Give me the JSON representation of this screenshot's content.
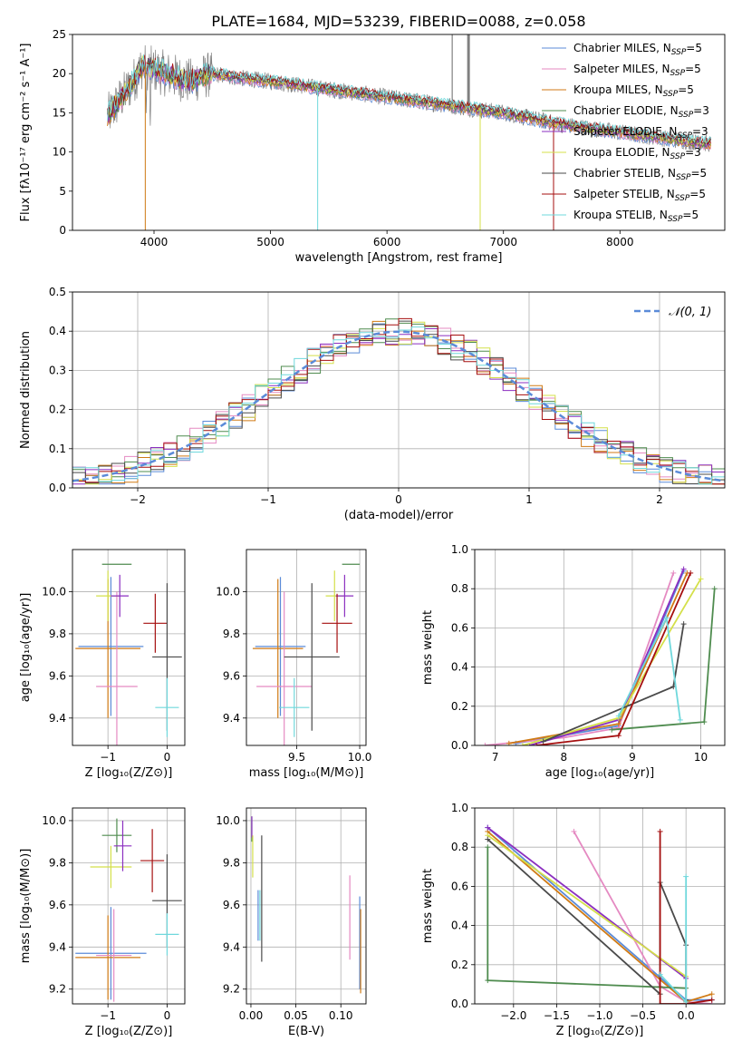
{
  "figure": {
    "title": "PLATE=1684, MJD=53239, FIBERID=0088, z=0.058"
  },
  "colors": {
    "chabrier_miles": "#5b8bd8",
    "salpeter_miles": "#e58ac2",
    "kroupa_miles": "#d07a14",
    "chabrier_elodie": "#4f8c4f",
    "salpeter_elodie": "#8b2fc0",
    "kroupa_elodie": "#d4e04a",
    "chabrier_stelib": "#4a4a4a",
    "salpeter_stelib": "#a50f0f",
    "kroupa_stelib": "#6fd8dc",
    "data": "#808080",
    "normal": "#5b8bd8"
  },
  "chart_data": [
    {
      "id": "spectrum",
      "type": "line",
      "xlabel": "wavelength [Angstrom, rest frame]",
      "ylabel": "Flux [fλ10⁻¹⁷ erg cm⁻² s⁻¹ A⁻¹]",
      "xlim": [
        3300,
        8900
      ],
      "ylim": [
        0,
        25
      ],
      "xticks": [
        4000,
        5000,
        6000,
        7000,
        8000
      ],
      "yticks": [
        0,
        5,
        10,
        15,
        20,
        25
      ],
      "grid": false,
      "legend_position": "top-right",
      "continuum": {
        "x": [
          3600,
          3700,
          3800,
          3900,
          4000,
          4100,
          4200,
          4300,
          4400,
          4500,
          4700,
          5000,
          5500,
          6000,
          6500,
          7000,
          7500,
          8000,
          8500,
          8800
        ],
        "y": [
          14.5,
          16.5,
          18.5,
          21,
          20.5,
          20,
          19.5,
          19,
          19.5,
          20,
          19.5,
          19,
          18,
          17,
          16,
          15,
          13.5,
          12.5,
          11.5,
          11
        ]
      },
      "series": [
        {
          "name": "Chabrier MILES, N_SSP=5",
          "color_key": "chabrier_miles"
        },
        {
          "name": "Salpeter MILES, N_SSP=5",
          "color_key": "salpeter_miles"
        },
        {
          "name": "Kroupa MILES, N_SSP=5",
          "color_key": "kroupa_miles"
        },
        {
          "name": "Chabrier ELODIE, N_SSP=3",
          "color_key": "chabrier_elodie"
        },
        {
          "name": "Salpeter ELODIE, N_SSP=3",
          "color_key": "salpeter_elodie"
        },
        {
          "name": "Kroupa ELODIE, N_SSP=3",
          "color_key": "kroupa_elodie"
        },
        {
          "name": "Chabrier STELIB, N_SSP=5",
          "color_key": "chabrier_stelib"
        },
        {
          "name": "Salpeter STELIB, N_SSP=5",
          "color_key": "salpeter_stelib"
        },
        {
          "name": "Kroupa STELIB, N_SSP=5",
          "color_key": "kroupa_stelib"
        }
      ],
      "legend_entries": [
        {
          "main": "Chabrier MILES, N",
          "sub": "SSP",
          "tail": "=5",
          "color_key": "chabrier_miles"
        },
        {
          "main": "Salpeter MILES, N",
          "sub": "SSP",
          "tail": "=5",
          "color_key": "salpeter_miles"
        },
        {
          "main": "Kroupa MILES, N",
          "sub": "SSP",
          "tail": "=5",
          "color_key": "kroupa_miles"
        },
        {
          "main": "Chabrier ELODIE, N",
          "sub": "SSP",
          "tail": "=3",
          "color_key": "chabrier_elodie"
        },
        {
          "main": "Salpeter ELODIE, N",
          "sub": "SSP",
          "tail": "=3",
          "color_key": "salpeter_elodie"
        },
        {
          "main": "Kroupa ELODIE, N",
          "sub": "SSP",
          "tail": "=3",
          "color_key": "kroupa_elodie"
        },
        {
          "main": "Chabrier STELIB, N",
          "sub": "SSP",
          "tail": "=5",
          "color_key": "chabrier_stelib"
        },
        {
          "main": "Salpeter STELIB, N",
          "sub": "SSP",
          "tail": "=5",
          "color_key": "salpeter_stelib"
        },
        {
          "main": "Kroupa STELIB, N",
          "sub": "SSP",
          "tail": "=5",
          "color_key": "kroupa_stelib"
        }
      ]
    },
    {
      "id": "residuals",
      "type": "line",
      "xlabel": "(data-model)/error",
      "ylabel": "Normed distribution",
      "xlim": [
        -2.5,
        2.5
      ],
      "ylim": [
        0,
        0.5
      ],
      "xticks": [
        -2,
        -1,
        0,
        1,
        2
      ],
      "xtick_labels": [
        "−2",
        "−1",
        "0",
        "1",
        "2"
      ],
      "yticks": [
        0.0,
        0.1,
        0.2,
        0.3,
        0.4,
        0.5
      ],
      "ytick_labels": [
        "0.0",
        "0.1",
        "0.2",
        "0.3",
        "0.4",
        "0.5"
      ],
      "grid": true,
      "legend_position": "top-right",
      "legend_label": "𝒩(0, 1)",
      "histogram_bins": 50,
      "histogram_jitter": 0.035,
      "series": [
        {
          "name": "𝒩(0, 1)",
          "mean": 0,
          "sigma": 1,
          "style": "dashed"
        }
      ]
    },
    {
      "id": "age_vs_Z",
      "type": "scatter",
      "xlabel": "Z [log₁₀(Z/Z⊙)]",
      "ylabel": "age  [log₁₀(age/yr)]",
      "xlim": [
        -1.6,
        0.3
      ],
      "ylim": [
        9.27,
        10.2
      ],
      "xticks": [
        -1,
        0
      ],
      "xtick_labels": [
        "−1",
        "0"
      ],
      "yticks": [
        9.4,
        9.6,
        9.8,
        10.0
      ],
      "ytick_labels": [
        "9.4",
        "9.6",
        "9.8",
        "10.0"
      ],
      "grid": true,
      "points": [
        {
          "color_key": "chabrier_miles",
          "x": -0.95,
          "xerr": 0.55,
          "y": 9.74,
          "yerr": 0.33
        },
        {
          "color_key": "kroupa_miles",
          "x": -1.0,
          "xerr": 0.55,
          "y": 9.73,
          "yerr": 0.33
        },
        {
          "color_key": "salpeter_miles",
          "x": -0.85,
          "xerr": 0.35,
          "y": 9.55,
          "yerr": 0.45
        },
        {
          "color_key": "chabrier_elodie",
          "x": -0.85,
          "xerr": 0.25,
          "y": 10.13,
          "yerr": 0.0
        },
        {
          "color_key": "kroupa_elodie",
          "x": -1.0,
          "xerr": 0.2,
          "y": 9.98,
          "yerr": 0.12
        },
        {
          "color_key": "salpeter_elodie",
          "x": -0.8,
          "xerr": 0.15,
          "y": 9.98,
          "yerr": 0.1
        },
        {
          "color_key": "salpeter_stelib",
          "x": -0.2,
          "xerr": 0.2,
          "y": 9.85,
          "yerr": 0.14
        },
        {
          "color_key": "chabrier_stelib",
          "x": 0.0,
          "xerr": 0.25,
          "y": 9.69,
          "yerr": 0.35
        },
        {
          "color_key": "kroupa_stelib",
          "x": 0.0,
          "xerr": 0.2,
          "y": 9.45,
          "yerr": 0.14
        }
      ]
    },
    {
      "id": "age_vs_mass",
      "type": "scatter",
      "xlabel": "mass [log₁₀(M/M⊙)]",
      "ylabel": "",
      "xlim": [
        9.1,
        10.05
      ],
      "ylim": [
        9.27,
        10.2
      ],
      "xticks": [
        9.5,
        10.0
      ],
      "xtick_labels": [
        "9.5",
        "10.0"
      ],
      "yticks": [
        9.4,
        9.6,
        9.8,
        10.0
      ],
      "ytick_labels": [
        "9.4",
        "9.6",
        "9.8",
        "10.0"
      ],
      "grid": true,
      "points": [
        {
          "color_key": "chabrier_miles",
          "x": 9.37,
          "xerr": 0.2,
          "y": 9.74,
          "yerr": 0.33
        },
        {
          "color_key": "kroupa_miles",
          "x": 9.35,
          "xerr": 0.2,
          "y": 9.73,
          "yerr": 0.33
        },
        {
          "color_key": "salpeter_miles",
          "x": 9.4,
          "xerr": 0.22,
          "y": 9.55,
          "yerr": 0.45
        },
        {
          "color_key": "chabrier_elodie",
          "x": 9.93,
          "xerr": 0.07,
          "y": 10.13,
          "yerr": 0.0
        },
        {
          "color_key": "kroupa_elodie",
          "x": 9.8,
          "xerr": 0.07,
          "y": 9.98,
          "yerr": 0.12
        },
        {
          "color_key": "salpeter_elodie",
          "x": 9.88,
          "xerr": 0.07,
          "y": 9.98,
          "yerr": 0.1
        },
        {
          "color_key": "salpeter_stelib",
          "x": 9.82,
          "xerr": 0.12,
          "y": 9.85,
          "yerr": 0.14
        },
        {
          "color_key": "chabrier_stelib",
          "x": 9.62,
          "xerr": 0.22,
          "y": 9.69,
          "yerr": 0.35
        },
        {
          "color_key": "kroupa_stelib",
          "x": 9.48,
          "xerr": 0.12,
          "y": 9.45,
          "yerr": 0.14
        }
      ]
    },
    {
      "id": "weight_vs_age",
      "type": "line",
      "xlabel": "age  [log₁₀(age/yr)]",
      "ylabel": "mass weight",
      "xlim": [
        6.7,
        10.35
      ],
      "ylim": [
        0,
        1
      ],
      "xticks": [
        7,
        8,
        9,
        10
      ],
      "yticks": [
        0.0,
        0.2,
        0.4,
        0.6,
        0.8,
        1.0
      ],
      "ytick_labels": [
        "0.0",
        "0.2",
        "0.4",
        "0.6",
        "0.8",
        "1.0"
      ],
      "grid": true,
      "series": [
        {
          "color_key": "chabrier_miles",
          "x": [
            7.3,
            8.8,
            9.75
          ],
          "y": [
            0.01,
            0.1,
            0.89
          ]
        },
        {
          "color_key": "salpeter_miles",
          "x": [
            6.85,
            8.0,
            8.8,
            9.6
          ],
          "y": [
            0.0,
            0.04,
            0.09,
            0.88
          ]
        },
        {
          "color_key": "kroupa_miles",
          "x": [
            7.2,
            8.8,
            9.8
          ],
          "y": [
            0.01,
            0.11,
            0.88
          ]
        },
        {
          "color_key": "chabrier_elodie",
          "x": [
            8.7,
            10.05,
            10.2
          ],
          "y": [
            0.08,
            0.12,
            0.8
          ]
        },
        {
          "color_key": "salpeter_elodie",
          "x": [
            7.5,
            8.8,
            9.75
          ],
          "y": [
            0.0,
            0.13,
            0.9
          ]
        },
        {
          "color_key": "kroupa_elodie",
          "x": [
            7.4,
            8.8,
            10.0
          ],
          "y": [
            0.0,
            0.14,
            0.85
          ]
        },
        {
          "color_key": "chabrier_stelib",
          "x": [
            7.7,
            9.6,
            9.75
          ],
          "y": [
            0.02,
            0.3,
            0.62
          ]
        },
        {
          "color_key": "salpeter_stelib",
          "x": [
            7.6,
            8.8,
            9.85
          ],
          "y": [
            0.0,
            0.05,
            0.88
          ]
        },
        {
          "color_key": "kroupa_stelib",
          "x": [
            8.8,
            9.5,
            9.7
          ],
          "y": [
            0.15,
            0.65,
            0.13
          ]
        }
      ]
    },
    {
      "id": "mass_vs_Z",
      "type": "scatter",
      "xlabel": "Z [log₁₀(Z/Z⊙)]",
      "ylabel": "mass [log₁₀(M/M⊙)]",
      "xlim": [
        -1.6,
        0.3
      ],
      "ylim": [
        9.13,
        10.06
      ],
      "xticks": [
        -1,
        0
      ],
      "xtick_labels": [
        "−1",
        "0"
      ],
      "yticks": [
        9.2,
        9.4,
        9.6,
        9.8,
        10.0
      ],
      "ytick_labels": [
        "9.2",
        "9.4",
        "9.6",
        "9.8",
        "10.0"
      ],
      "grid": true,
      "points": [
        {
          "color_key": "chabrier_miles",
          "x": -0.95,
          "xerr": 0.6,
          "y": 9.37,
          "yerr": 0.22
        },
        {
          "color_key": "kroupa_miles",
          "x": -1.0,
          "xerr": 0.55,
          "y": 9.35,
          "yerr": 0.2
        },
        {
          "color_key": "salpeter_miles",
          "x": -0.9,
          "xerr": 0.3,
          "y": 9.36,
          "yerr": 0.22
        },
        {
          "color_key": "chabrier_elodie",
          "x": -0.85,
          "xerr": 0.25,
          "y": 9.93,
          "yerr": 0.08
        },
        {
          "color_key": "kroupa_elodie",
          "x": -0.95,
          "xerr": 0.35,
          "y": 9.78,
          "yerr": 0.1
        },
        {
          "color_key": "salpeter_elodie",
          "x": -0.75,
          "xerr": 0.15,
          "y": 9.88,
          "yerr": 0.12
        },
        {
          "color_key": "salpeter_stelib",
          "x": -0.25,
          "xerr": 0.2,
          "y": 9.81,
          "yerr": 0.15
        },
        {
          "color_key": "chabrier_stelib",
          "x": 0.0,
          "xerr": 0.25,
          "y": 9.62,
          "yerr": 0.22
        },
        {
          "color_key": "kroupa_stelib",
          "x": 0.0,
          "xerr": 0.2,
          "y": 9.46,
          "yerr": 0.1
        }
      ]
    },
    {
      "id": "mass_vs_ebv",
      "type": "scatter",
      "xlabel": "E(B-V)",
      "ylabel": "",
      "xlim": [
        -0.005,
        0.128
      ],
      "ylim": [
        9.13,
        10.06
      ],
      "xticks": [
        0.0,
        0.05,
        0.1
      ],
      "xtick_labels": [
        "0.00",
        "0.05",
        "0.10"
      ],
      "yticks": [
        9.2,
        9.4,
        9.6,
        9.8,
        10.0
      ],
      "ytick_labels": [
        "9.2",
        "9.4",
        "9.6",
        "9.8",
        "10.0"
      ],
      "grid": true,
      "points": [
        {
          "color_key": "chabrier_elodie",
          "x": 0.001,
          "xerr": 0,
          "y": 9.96,
          "yerr": 0.06
        },
        {
          "color_key": "salpeter_elodie",
          "x": 0.001,
          "xerr": 0,
          "y": 9.97,
          "yerr": 0.05
        },
        {
          "color_key": "kroupa_elodie",
          "x": 0.002,
          "xerr": 0,
          "y": 9.83,
          "yerr": 0.1
        },
        {
          "color_key": "chabrier_miles",
          "x": 0.008,
          "xerr": 0,
          "y": 9.55,
          "yerr": 0.12
        },
        {
          "color_key": "kroupa_stelib",
          "x": 0.01,
          "xerr": 0,
          "y": 9.55,
          "yerr": 0.12
        },
        {
          "color_key": "chabrier_stelib",
          "x": 0.012,
          "xerr": 0,
          "y": 9.63,
          "yerr": 0.3
        },
        {
          "color_key": "salpeter_miles",
          "x": 0.11,
          "xerr": 0,
          "y": 9.54,
          "yerr": 0.2
        },
        {
          "color_key": "chabrier_miles",
          "x": 0.121,
          "xerr": 0,
          "y": 9.42,
          "yerr": 0.22
        },
        {
          "color_key": "kroupa_miles",
          "x": 0.122,
          "xerr": 0,
          "y": 9.38,
          "yerr": 0.2
        }
      ]
    },
    {
      "id": "weight_vs_Z",
      "type": "line",
      "xlabel": "Z [log₁₀(Z/Z⊙)]",
      "ylabel": "mass weight",
      "xlim": [
        -2.45,
        0.45
      ],
      "ylim": [
        0,
        1
      ],
      "xticks": [
        -2.0,
        -1.5,
        -1.0,
        -0.5,
        0.0
      ],
      "xtick_labels": [
        "−2.0",
        "−1.5",
        "−1.0",
        "−0.5",
        "0.0"
      ],
      "yticks": [
        0.0,
        0.2,
        0.4,
        0.6,
        0.8,
        1.0
      ],
      "ytick_labels": [
        "0.0",
        "0.2",
        "0.4",
        "0.6",
        "0.8",
        "1.0"
      ],
      "grid": true,
      "series": [
        {
          "color_key": "chabrier_miles",
          "x": [
            -2.3,
            0.0,
            0.3
          ],
          "y": [
            0.9,
            0.02,
            0.02
          ]
        },
        {
          "color_key": "salpeter_miles",
          "x": [
            -1.3,
            -0.3,
            0.0,
            0.3
          ],
          "y": [
            0.88,
            0.09,
            0.01,
            0.0
          ]
        },
        {
          "color_key": "kroupa_miles",
          "x": [
            -2.3,
            0.0,
            0.3
          ],
          "y": [
            0.88,
            0.01,
            0.05
          ]
        },
        {
          "color_key": "chabrier_elodie",
          "x": [
            -2.3,
            -2.3,
            0.0
          ],
          "y": [
            0.8,
            0.12,
            0.08
          ]
        },
        {
          "color_key": "salpeter_elodie",
          "x": [
            -2.3,
            0.0
          ],
          "y": [
            0.9,
            0.13
          ]
        },
        {
          "color_key": "kroupa_elodie",
          "x": [
            -2.3,
            0.0
          ],
          "y": [
            0.86,
            0.14
          ]
        },
        {
          "color_key": "chabrier_stelib",
          "x": [
            -2.3,
            -0.3,
            -0.3,
            0.0,
            0.0
          ],
          "y": [
            0.84,
            0.05,
            0.62,
            0.3,
            0.02
          ]
        },
        {
          "color_key": "salpeter_stelib",
          "x": [
            -0.3,
            -0.3,
            0.0,
            0.3
          ],
          "y": [
            0.88,
            0.0,
            0.0,
            0.02
          ]
        },
        {
          "color_key": "kroupa_stelib",
          "x": [
            -0.3,
            0.0,
            0.0
          ],
          "y": [
            0.15,
            0.01,
            0.65
          ]
        }
      ]
    }
  ]
}
